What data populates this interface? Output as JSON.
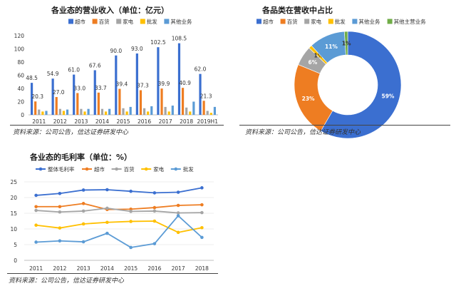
{
  "colors": {
    "supermarket": "#3b6fd0",
    "department": "#ee7d22",
    "appliance": "#a5a5a5",
    "wholesale": "#ffc000",
    "other": "#5b9bd5",
    "other_main": "#70ad47",
    "overall": "#3b6fd0"
  },
  "chart_data": [
    {
      "id": "revenue",
      "type": "bar",
      "title": "各业态的营业收入（单位：亿元）",
      "source": "资料来源：公司公告，信达证券研发中心",
      "categories": [
        "2011",
        "2012",
        "2013",
        "2014",
        "2015",
        "2016",
        "2017",
        "2018",
        "2019H1"
      ],
      "ylim": [
        0,
        120
      ],
      "yticks": [
        0,
        20,
        40,
        60,
        80,
        100,
        120
      ],
      "legend_position": "top",
      "series": [
        {
          "name": "超市",
          "color_key": "supermarket",
          "values": [
            48.5,
            54.9,
            61.0,
            67.6,
            90.0,
            93.0,
            102.5,
            108.5,
            62.0
          ],
          "labels": [
            "48.5",
            "54.9",
            "61.0",
            "67.6",
            "90.0",
            "93.0",
            "102.5",
            "108.5",
            "62.0"
          ]
        },
        {
          "name": "百货",
          "color_key": "department",
          "values": [
            20.3,
            27.0,
            33.0,
            33.7,
            39.4,
            37.3,
            39.9,
            40.9,
            21.3
          ],
          "labels": [
            "20.3",
            "27.0",
            "33.0",
            "33.7",
            "39.4",
            "37.3",
            "39.9",
            "40.9",
            "21.3"
          ]
        },
        {
          "name": "家电",
          "color_key": "appliance",
          "values": [
            8,
            9,
            9,
            9,
            10,
            10,
            12,
            11,
            6
          ],
          "labels": []
        },
        {
          "name": "批发",
          "color_key": "wholesale",
          "values": [
            5,
            6,
            5,
            5,
            5,
            5,
            5,
            5,
            3
          ],
          "labels": []
        },
        {
          "name": "其他业务",
          "color_key": "other",
          "values": [
            6,
            8,
            9,
            9,
            12,
            13,
            14,
            20,
            12
          ],
          "labels": []
        }
      ]
    },
    {
      "id": "share",
      "type": "pie",
      "title": "各品类在营收中占比",
      "source": "资料来源：公司公告，信达证券研发中心",
      "legend_position": "top",
      "donut": true,
      "slices": [
        {
          "name": "超市",
          "color_key": "supermarket",
          "value": 59,
          "label": "59%"
        },
        {
          "name": "百货",
          "color_key": "department",
          "value": 23,
          "label": "23%"
        },
        {
          "name": "家电",
          "color_key": "appliance",
          "value": 6,
          "label": "6%"
        },
        {
          "name": "批发",
          "color_key": "wholesale",
          "value": 1,
          "label": "1%"
        },
        {
          "name": "其他业务",
          "color_key": "other",
          "value": 11,
          "label": "11%"
        },
        {
          "name": "其他主营业务",
          "color_key": "other_main",
          "value": 1,
          "label": "1%"
        }
      ]
    },
    {
      "id": "margin",
      "type": "line",
      "title": "各业态的毛利率（单位：%）",
      "source": "资料来源：公司公告，信达证券研发中心",
      "categories": [
        "2011",
        "2012",
        "2013",
        "2014",
        "2015",
        "2016",
        "2017",
        "2018"
      ],
      "ylim": [
        0,
        25
      ],
      "yticks": [
        0,
        5,
        10,
        15,
        20,
        25
      ],
      "legend_position": "top",
      "series": [
        {
          "name": "整体毛利率",
          "color_key": "overall",
          "values": [
            20.7,
            21.3,
            22.4,
            22.5,
            22.0,
            21.5,
            21.7,
            23.1
          ]
        },
        {
          "name": "超市",
          "color_key": "department",
          "values": [
            17.1,
            17.1,
            18.1,
            16.2,
            16.3,
            16.8,
            17.5,
            17.7
          ]
        },
        {
          "name": "百货",
          "color_key": "appliance",
          "values": [
            15.9,
            15.4,
            15.7,
            16.6,
            15.6,
            15.7,
            15.1,
            15.2
          ]
        },
        {
          "name": "家电",
          "color_key": "wholesale",
          "values": [
            11.2,
            10.3,
            11.6,
            12.1,
            12.4,
            12.5,
            8.9,
            10.4
          ]
        },
        {
          "name": "批发",
          "color_key": "other",
          "values": [
            5.8,
            6.2,
            5.9,
            8.6,
            4.1,
            5.3,
            14.2,
            7.3
          ]
        }
      ]
    }
  ]
}
